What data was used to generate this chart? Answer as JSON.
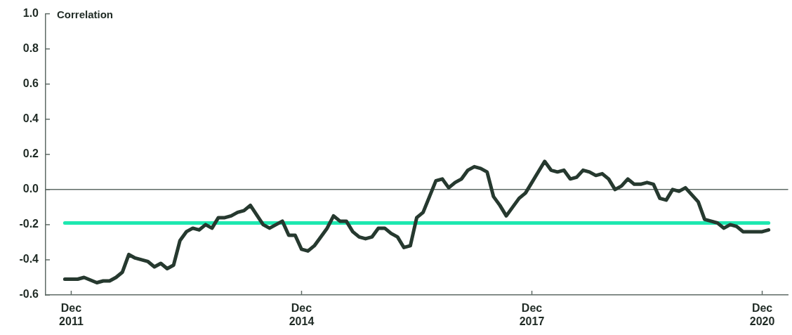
{
  "chart_data": {
    "type": "line",
    "ylabel": "Correlation",
    "x": [
      "2011-11",
      "2012-01",
      "2012-02",
      "2012-04",
      "2012-05",
      "2012-06",
      "2012-07",
      "2012-08",
      "2012-09",
      "2012-10",
      "2012-11",
      "2012-12",
      "2013-01",
      "2013-02",
      "2013-03",
      "2013-04",
      "2013-05",
      "2013-06",
      "2013-07",
      "2013-08",
      "2013-09",
      "2013-10",
      "2013-11",
      "2013-12",
      "2014-01",
      "2014-02",
      "2014-03",
      "2014-04",
      "2014-06",
      "2014-07",
      "2014-08",
      "2014-09",
      "2014-10",
      "2014-11",
      "2014-12",
      "2015-01",
      "2015-02",
      "2015-03",
      "2015-04",
      "2015-05",
      "2015-06",
      "2015-07",
      "2015-08",
      "2015-09",
      "2015-10",
      "2015-11",
      "2015-12",
      "2016-01",
      "2016-02",
      "2016-03",
      "2016-04",
      "2016-05",
      "2016-06",
      "2016-07",
      "2016-08",
      "2016-09",
      "2016-10",
      "2016-11",
      "2016-12",
      "2017-01",
      "2017-02",
      "2017-03",
      "2017-04",
      "2017-05",
      "2017-06",
      "2017-07",
      "2017-08",
      "2017-09",
      "2017-10",
      "2017-11",
      "2017-12",
      "2018-01",
      "2018-02",
      "2018-03",
      "2018-04",
      "2018-05",
      "2018-06",
      "2018-07",
      "2018-08",
      "2018-09",
      "2018-10",
      "2018-11",
      "2018-12",
      "2019-01",
      "2019-02",
      "2019-03",
      "2019-04",
      "2019-05",
      "2019-06",
      "2019-07",
      "2019-08",
      "2019-09",
      "2019-10",
      "2019-11",
      "2019-12",
      "2020-01",
      "2020-02",
      "2020-03",
      "2020-04",
      "2020-05",
      "2020-06",
      "2020-07",
      "2020-08",
      "2020-09",
      "2020-10",
      "2020-12",
      "2021-01"
    ],
    "series": [
      {
        "color": "#26392f",
        "values": [
          -0.51,
          -0.51,
          -0.5,
          -0.53,
          -0.52,
          -0.52,
          -0.5,
          -0.47,
          -0.37,
          -0.39,
          -0.4,
          -0.41,
          -0.44,
          -0.42,
          -0.45,
          -0.43,
          -0.29,
          -0.24,
          -0.22,
          -0.23,
          -0.2,
          -0.22,
          -0.16,
          -0.16,
          -0.15,
          -0.13,
          -0.12,
          -0.09,
          -0.2,
          -0.22,
          -0.2,
          -0.18,
          -0.26,
          -0.26,
          -0.34,
          -0.35,
          -0.32,
          -0.27,
          -0.22,
          -0.15,
          -0.18,
          -0.18,
          -0.24,
          -0.27,
          -0.28,
          -0.27,
          -0.22,
          -0.22,
          -0.25,
          -0.27,
          -0.33,
          -0.32,
          -0.16,
          -0.13,
          -0.04,
          0.05,
          0.06,
          0.01,
          0.04,
          0.06,
          0.11,
          0.13,
          0.12,
          0.1,
          -0.04,
          -0.09,
          -0.15,
          -0.1,
          -0.05,
          -0.02,
          0.04,
          0.1,
          0.16,
          0.11,
          0.1,
          0.11,
          0.06,
          0.07,
          0.11,
          0.1,
          0.08,
          0.09,
          0.06,
          0.0,
          0.02,
          0.06,
          0.03,
          0.03,
          0.04,
          0.03,
          -0.05,
          -0.06,
          0.0,
          -0.01,
          0.01,
          -0.03,
          -0.07,
          -0.17,
          -0.18,
          -0.19,
          -0.22,
          -0.2,
          -0.21,
          -0.24,
          -0.24,
          -0.24,
          -0.23
        ]
      }
    ],
    "xlim": [
      "2011-08",
      "2021-04"
    ],
    "xticks": [
      {
        "value": "2011-12",
        "label": "Dec\n2011"
      },
      {
        "value": "2014-12",
        "label": "Dec\n2014"
      },
      {
        "value": "2017-12",
        "label": "Dec\n2017"
      },
      {
        "value": "2020-12",
        "label": "Dec\n2020"
      }
    ],
    "ylim": [
      -0.6,
      1.0
    ],
    "yticks": [
      {
        "value": -0.6,
        "label": "-0.6"
      },
      {
        "value": -0.4,
        "label": "-0.4"
      },
      {
        "value": -0.2,
        "label": "-0.2"
      },
      {
        "value": 0,
        "label": "0.0"
      },
      {
        "value": 0.2,
        "label": "0.2"
      },
      {
        "value": 0.4,
        "label": "0.4"
      },
      {
        "value": 0.6,
        "label": "0.6"
      },
      {
        "value": 0.8,
        "label": "0.8"
      },
      {
        "value": 1.0,
        "label": "1.0"
      }
    ],
    "ref_lines": [
      {
        "axis": "y",
        "value": 0,
        "color": "#5f6b66"
      },
      {
        "axis": "y",
        "value": -0.19,
        "color": "#1ee8b0"
      }
    ],
    "grid": false,
    "legend": false,
    "marker": "none",
    "line_style": "solid"
  }
}
